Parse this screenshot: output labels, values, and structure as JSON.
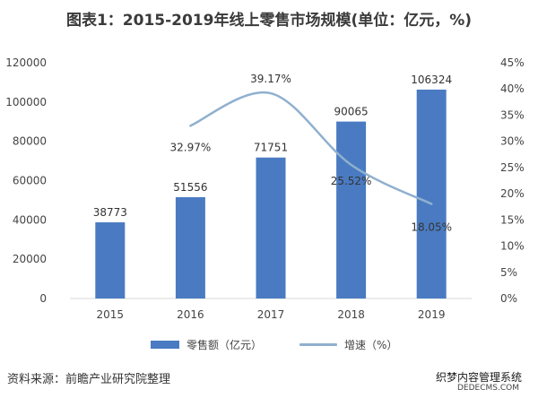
{
  "title": "图表1：2015-2019年线上零售市场规模(单位：亿元，%)",
  "source": "资料来源：前瞻产业研究院整理",
  "watermark": "织梦内容管理系统",
  "watermark_domain": "DEDECMS.COM",
  "colors": {
    "bar": "#4a7bc2",
    "line": "#8fb0cf",
    "axis": "#d9d9d9",
    "label": "#444444"
  },
  "chart_data": {
    "type": "bar",
    "categories": [
      "2015",
      "2016",
      "2017",
      "2018",
      "2019"
    ],
    "series": [
      {
        "name": "零售额（亿元）",
        "type": "bar",
        "axis": "left",
        "values": [
          38773,
          51556,
          71751,
          90065,
          106324
        ],
        "labels": [
          "38773",
          "51556",
          "71751",
          "90065",
          "106324"
        ]
      },
      {
        "name": "增速（%）",
        "type": "line",
        "axis": "right",
        "smooth": true,
        "values": [
          null,
          32.97,
          39.17,
          25.52,
          18.05
        ],
        "labels": [
          "",
          "32.97%",
          "39.17%",
          "25.52%",
          "18.05%"
        ]
      }
    ],
    "y_left": {
      "ylim": [
        0,
        120000
      ],
      "ticks": [
        "0",
        "20000",
        "40000",
        "60000",
        "80000",
        "100000",
        "120000"
      ]
    },
    "y_right": {
      "ylim": [
        0,
        45
      ],
      "ticks": [
        "0%",
        "5%",
        "10%",
        "15%",
        "20%",
        "25%",
        "30%",
        "35%",
        "40%",
        "45%"
      ]
    },
    "legend_position": "bottom",
    "grid": false
  }
}
